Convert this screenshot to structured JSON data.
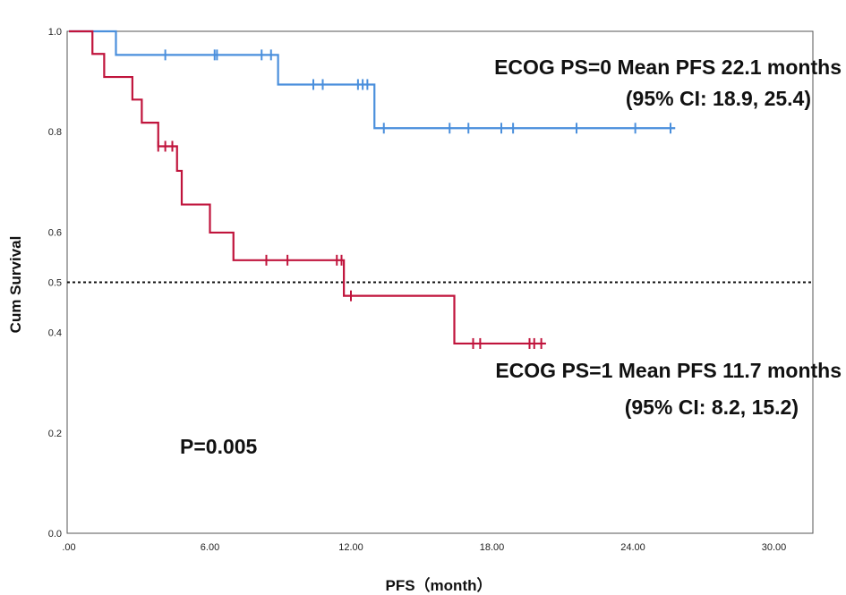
{
  "chart_data": {
    "type": "line",
    "title": "",
    "xlabel": "PFS（month）",
    "ylabel": "Cum Survival",
    "xlim": [
      0,
      31.8
    ],
    "ylim": [
      0,
      1.0
    ],
    "x_ticks": [
      0,
      6,
      12,
      18,
      24,
      30
    ],
    "x_tick_labels": [
      ".00",
      "6.00",
      "12.00",
      "18.00",
      "24.00",
      "30.00"
    ],
    "y_ticks": [
      0.0,
      0.2,
      0.4,
      0.5,
      0.6,
      0.8,
      1.0
    ],
    "y_tick_labels": [
      "0.0",
      "0.2",
      "0.4",
      "0.5",
      "0.6",
      "0.8",
      "1.0"
    ],
    "reference_line": {
      "y": 0.5,
      "style": "dotted"
    },
    "grid": false,
    "series": [
      {
        "name": "ECOG PS=0",
        "color": "#4a8fdc",
        "step_x": [
          0,
          2.0,
          8.9,
          13.0,
          25.8
        ],
        "step_y": [
          1.0,
          0.953,
          0.894,
          0.807,
          0.807
        ],
        "censored": [
          4.1,
          6.2,
          6.3,
          8.2,
          8.6,
          10.4,
          10.8,
          12.3,
          12.5,
          12.7,
          13.4,
          16.2,
          17.0,
          18.4,
          18.9,
          21.6,
          24.1,
          25.6
        ]
      },
      {
        "name": "ECOG PS=1",
        "color": "#c0143c",
        "step_x": [
          0,
          1.0,
          1.5,
          2.7,
          3.1,
          3.8,
          4.6,
          4.8,
          6.0,
          7.0,
          11.7,
          16.4,
          20.3
        ],
        "step_y": [
          1.0,
          0.955,
          0.909,
          0.864,
          0.818,
          0.771,
          0.722,
          0.655,
          0.599,
          0.544,
          0.473,
          0.378,
          0.378
        ],
        "censored": [
          3.8,
          4.1,
          4.4,
          8.4,
          9.3,
          11.4,
          11.6,
          12.0,
          17.2,
          17.5,
          19.6,
          19.8,
          20.1
        ]
      }
    ],
    "annotations": {
      "ps0_line1": "ECOG PS=0  Mean PFS 22.1 months",
      "ps0_line2": "(95% CI: 18.9, 25.4)",
      "ps1_line1": "ECOG PS=1  Mean PFS 11.7 months",
      "ps1_line2": "(95% CI: 8.2, 15.2)",
      "p_value": "P=0.005"
    }
  }
}
